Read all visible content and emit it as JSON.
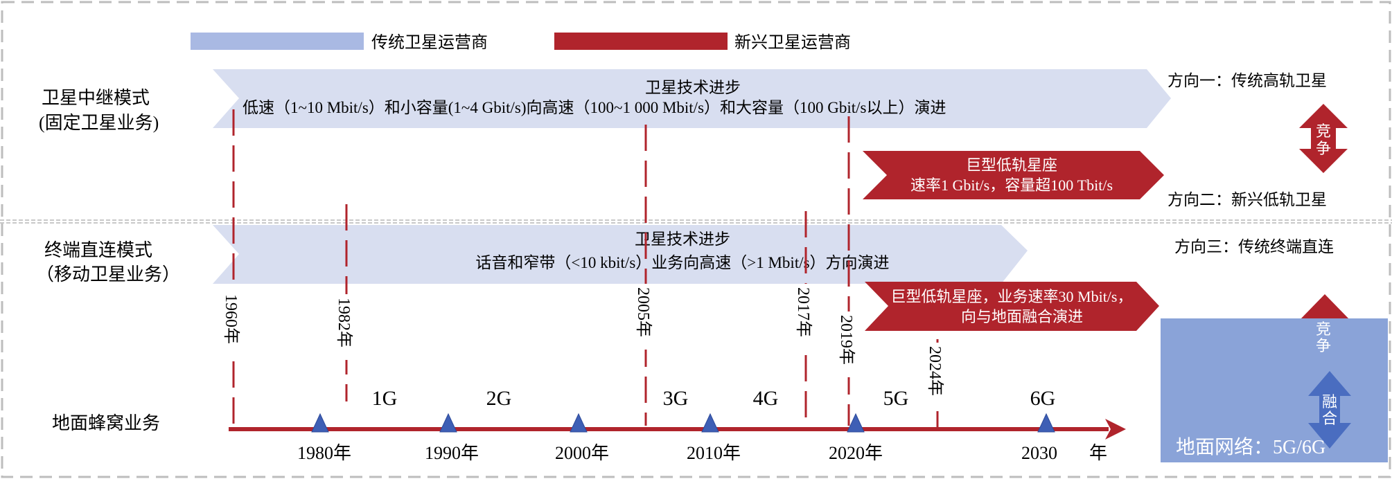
{
  "colors": {
    "traditional": "#a9b9e3",
    "arrow_blue": "#d8def0",
    "emerging": "#b0242c",
    "ground_box": "#8aa3d8",
    "fusion_arrow": "#4a6dc0",
    "triangle": "#3e5fb5"
  },
  "legend": {
    "traditional": "传统卫星运营商",
    "emerging": "新兴卫星运营商"
  },
  "relay": {
    "label_line1": "卫星中继模式",
    "label_line2": "(固定卫星业务)",
    "arrow_title": "卫星技术进步",
    "arrow_text": "低速（1~10 Mbit/s）和小容量(1~4 Gbit/s)向高速（100~1 000 Mbit/s）和大容量（100 Gbit/s以上）演进",
    "leo_line1": "巨型低轨星座",
    "leo_line2": "速率1 Gbit/s，容量超100 Tbit/s",
    "direction1": "方向一：传统高轨卫星",
    "direction2": "方向二：新兴低轨卫星",
    "compete": [
      "竞",
      "争"
    ]
  },
  "direct": {
    "label_line1": "终端直连模式",
    "label_line2": "（移动卫星业务）",
    "arrow_title": "卫星技术进步",
    "arrow_text": "话音和窄带（<10 kbit/s）业务向高速（>1 Mbit/s）方向演进",
    "leo_line1": "巨型低轨星座，业务速率30 Mbit/s，",
    "leo_line2": "向与地面融合演进",
    "direction3": "方向三：传统终端直连",
    "compete": [
      "竞",
      "争"
    ],
    "fusion": [
      "融",
      "合"
    ],
    "ground_network": "地面网络：5G/6G"
  },
  "cellular": {
    "label": "地面蜂窝业务",
    "axis_unit": "年",
    "ticks": [
      "1980年",
      "1990年",
      "2000年",
      "2010年",
      "2020年",
      "2030"
    ],
    "generations": [
      "1G",
      "2G",
      "3G",
      "4G",
      "5G",
      "6G"
    ]
  },
  "milestones": [
    "1960年",
    "1982年",
    "2005年",
    "2017年",
    "2019年",
    "2024年"
  ]
}
